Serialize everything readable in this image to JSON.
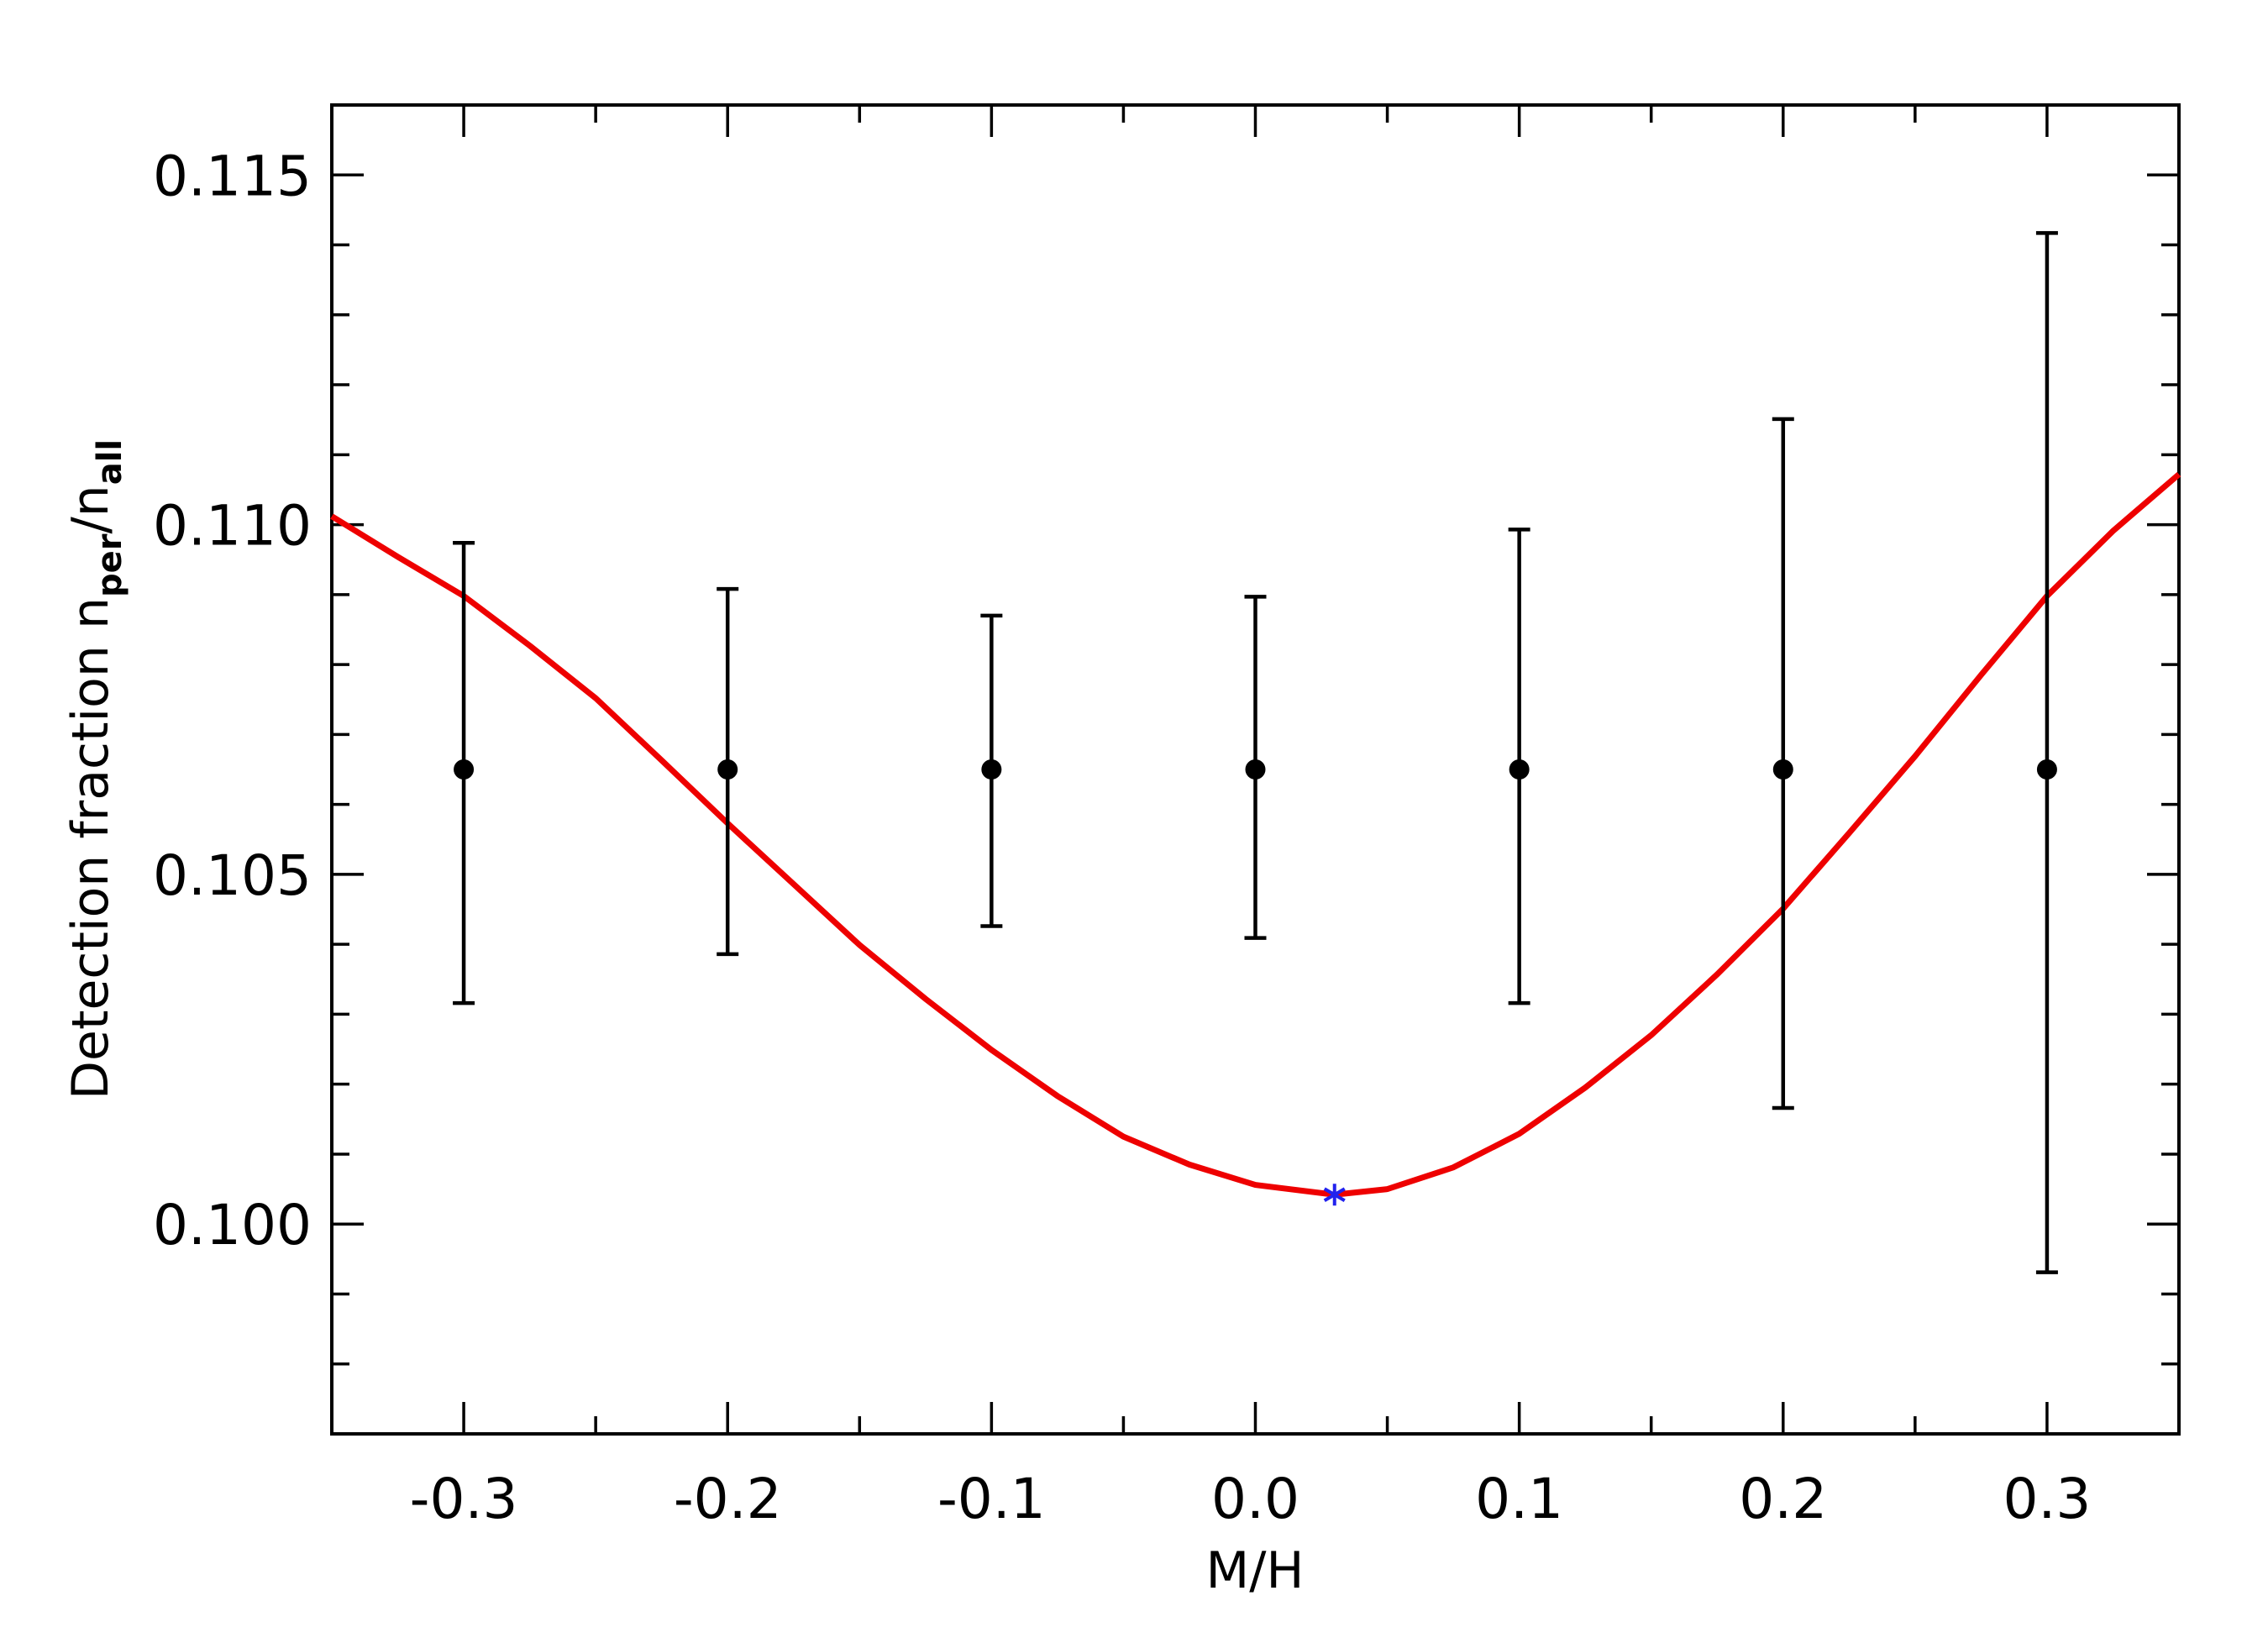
{
  "chart_data": {
    "type": "scatter",
    "xlabel": "M/H",
    "ylabel": [
      "Detection fraction n",
      "per",
      "/n",
      "all"
    ],
    "xlim": [
      -0.35,
      0.35
    ],
    "ylim": [
      0.097,
      0.116
    ],
    "xticks": [
      -0.3,
      -0.2,
      -0.1,
      {
        "value": 0,
        "label": "0.0"
      },
      0.1,
      0.2,
      0.3
    ],
    "yticks": [
      {
        "value": 0.1,
        "label": "0.100"
      },
      {
        "value": 0.105,
        "label": "0.105"
      },
      {
        "value": 0.11,
        "label": "0.110"
      },
      {
        "value": 0.115,
        "label": "0.115"
      }
    ],
    "xminorticks": [
      -0.25,
      -0.15,
      -0.05,
      0.05,
      0.15,
      0.25
    ],
    "yminorticks": [
      0.098,
      0.099,
      0.101,
      0.102,
      0.103,
      0.104,
      0.106,
      0.107,
      0.108,
      0.109,
      0.111,
      0.112,
      0.113,
      0.114
    ],
    "points": {
      "color": "#000000",
      "x": [
        -0.3,
        -0.2,
        -0.1,
        0.0,
        0.1,
        0.2,
        0.3
      ],
      "values": [
        0.1065,
        0.1065,
        0.1065,
        0.1065,
        0.1065,
        0.1065,
        0.1065
      ],
      "err_plus": [
        0.00324,
        0.00258,
        0.0022,
        0.00247,
        0.00343,
        0.00501,
        0.00767
      ],
      "err_minus": [
        0.00334,
        0.00264,
        0.00224,
        0.00241,
        0.00334,
        0.00484,
        0.00719
      ]
    },
    "curve": {
      "color": "#ee0000",
      "x": [
        -0.35,
        -0.325,
        -0.3,
        -0.275,
        -0.25,
        -0.225,
        -0.2,
        -0.175,
        -0.15,
        -0.125,
        -0.1,
        -0.075,
        -0.05,
        -0.025,
        0.0,
        0.03,
        0.05,
        0.075,
        0.1,
        0.125,
        0.15,
        0.175,
        0.2,
        0.225,
        0.25,
        0.275,
        0.3,
        0.325,
        0.35
      ],
      "values": [
        0.11012,
        0.10954,
        0.10898,
        0.10827,
        0.10752,
        0.10663,
        0.10573,
        0.10486,
        0.10399,
        0.10322,
        0.10249,
        0.10183,
        0.10125,
        0.10085,
        0.10056,
        0.10042,
        0.1005,
        0.10081,
        0.10129,
        0.10195,
        0.1027,
        0.10357,
        0.10451,
        0.10559,
        0.10669,
        0.10785,
        0.10898,
        0.10991,
        0.11072
      ]
    },
    "minimum": {
      "x": 0.03,
      "y": 0.10042,
      "color": "#2222ee"
    }
  }
}
